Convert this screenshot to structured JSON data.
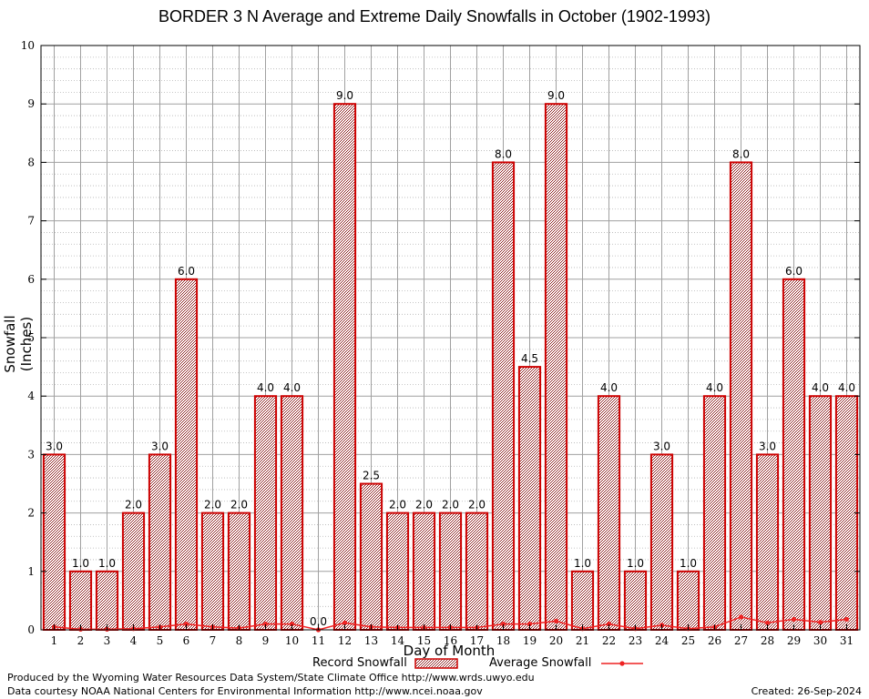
{
  "chart_data": {
    "type": "bar",
    "title": "BORDER 3 N Average and Extreme Daily Snowfalls in October (1902-1993)",
    "xlabel": "Day of Month",
    "ylabel": "Snowfall (Inches)",
    "ylim": [
      0,
      10
    ],
    "yticks": [
      "0",
      "1",
      "2",
      "3",
      "4",
      "5",
      "6",
      "7",
      "8",
      "9",
      "10"
    ],
    "categories": [
      "1",
      "2",
      "3",
      "4",
      "5",
      "6",
      "7",
      "8",
      "9",
      "10",
      "11",
      "12",
      "13",
      "14",
      "15",
      "16",
      "17",
      "18",
      "19",
      "20",
      "21",
      "22",
      "23",
      "24",
      "25",
      "26",
      "27",
      "28",
      "29",
      "30",
      "31"
    ],
    "series": [
      {
        "name": "Record Snowfall",
        "type": "bar",
        "color": "#8b1a1a",
        "values": [
          3.0,
          1.0,
          1.0,
          2.0,
          3.0,
          6.0,
          2.0,
          2.0,
          4.0,
          4.0,
          0.0,
          9.0,
          2.5,
          2.0,
          2.0,
          2.0,
          2.0,
          8.0,
          4.5,
          9.0,
          1.0,
          4.0,
          1.0,
          3.0,
          1.0,
          4.0,
          8.0,
          3.0,
          6.0,
          4.0,
          4.0
        ],
        "labels": [
          "3.0",
          "1.0",
          "1.0",
          "2.0",
          "3.0",
          "6.0",
          "2.0",
          "2.0",
          "4.0",
          "4.0",
          "0.0",
          "9.0",
          "2.5",
          "2.0",
          "2.0",
          "2.0",
          "2.0",
          "8.0",
          "4.5",
          "9.0",
          "1.0",
          "4.0",
          "1.0",
          "3.0",
          "1.0",
          "4.0",
          "8.0",
          "3.0",
          "6.0",
          "4.0",
          "4.0"
        ]
      },
      {
        "name": "Average Snowfall",
        "type": "line",
        "color": "#ee2222",
        "values": [
          0.05,
          0.01,
          0.01,
          0.02,
          0.05,
          0.1,
          0.05,
          0.03,
          0.1,
          0.1,
          0.0,
          0.12,
          0.05,
          0.04,
          0.04,
          0.04,
          0.04,
          0.1,
          0.1,
          0.15,
          0.02,
          0.1,
          0.02,
          0.08,
          0.02,
          0.05,
          0.22,
          0.12,
          0.18,
          0.13,
          0.18
        ]
      }
    ],
    "grid": true,
    "legend": "bottom-center"
  },
  "footer": {
    "credit1": "Produced by the Wyoming Water Resources Data System/State Climate Office http://www.wrds.uwyo.edu",
    "credit2": "Data courtesy NOAA National Centers for Environmental Information http://www.ncei.noaa.gov",
    "created": "Created:  26-Sep-2024"
  }
}
